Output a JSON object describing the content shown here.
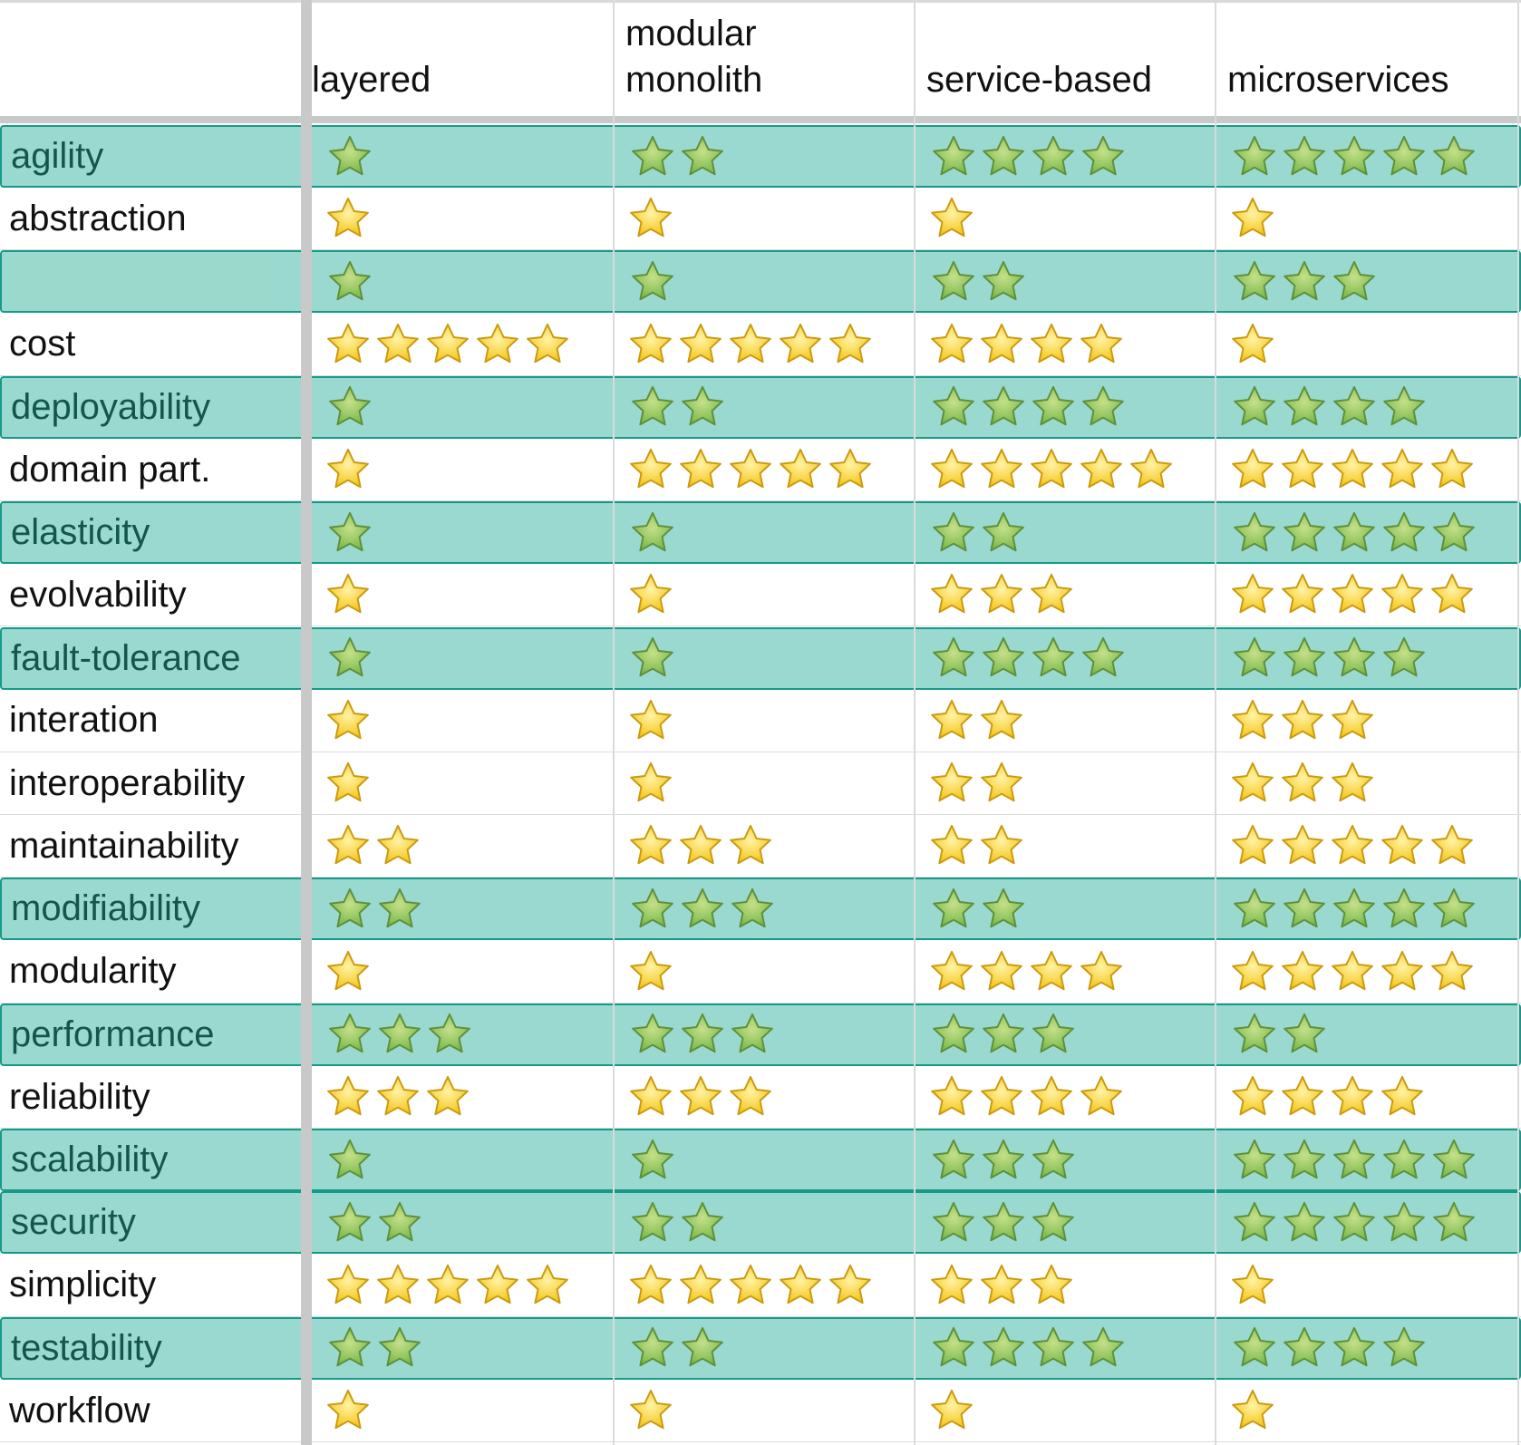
{
  "table": {
    "columns": [
      "layered",
      "modular\nmonolith",
      "service-based",
      "microservices"
    ],
    "rows": [
      {
        "label": "agility",
        "highlight": true,
        "stars": [
          1,
          2,
          4,
          5
        ]
      },
      {
        "label": "abstraction",
        "highlight": false,
        "stars": [
          1,
          1,
          1,
          1
        ]
      },
      {
        "label": "",
        "highlight": true,
        "redacted": true,
        "stars": [
          1,
          1,
          2,
          3
        ]
      },
      {
        "label": "cost",
        "highlight": false,
        "stars": [
          5,
          5,
          4,
          1
        ]
      },
      {
        "label": "deployability",
        "highlight": true,
        "stars": [
          1,
          2,
          4,
          4
        ]
      },
      {
        "label": "domain part.",
        "highlight": false,
        "stars": [
          1,
          5,
          5,
          5
        ]
      },
      {
        "label": "elasticity",
        "highlight": true,
        "stars": [
          1,
          1,
          2,
          5
        ]
      },
      {
        "label": "evolvability",
        "highlight": false,
        "stars": [
          1,
          1,
          3,
          5
        ]
      },
      {
        "label": "fault-tolerance",
        "highlight": true,
        "stars": [
          1,
          1,
          4,
          4
        ]
      },
      {
        "label": "interation",
        "highlight": false,
        "stars": [
          1,
          1,
          2,
          3
        ]
      },
      {
        "label": "interoperability",
        "highlight": false,
        "stars": [
          1,
          1,
          2,
          3
        ]
      },
      {
        "label": "maintainability",
        "highlight": false,
        "stars": [
          2,
          3,
          2,
          5
        ]
      },
      {
        "label": "modifiability",
        "highlight": true,
        "stars": [
          2,
          3,
          2,
          5
        ]
      },
      {
        "label": "modularity",
        "highlight": false,
        "stars": [
          1,
          1,
          4,
          5
        ]
      },
      {
        "label": "performance",
        "highlight": true,
        "stars": [
          3,
          3,
          3,
          2
        ]
      },
      {
        "label": "reliability",
        "highlight": false,
        "stars": [
          3,
          3,
          4,
          4
        ]
      },
      {
        "label": "scalability",
        "highlight": true,
        "stars": [
          1,
          1,
          3,
          5
        ]
      },
      {
        "label": "security",
        "highlight": true,
        "stars": [
          2,
          2,
          3,
          5
        ]
      },
      {
        "label": "simplicity",
        "highlight": false,
        "stars": [
          5,
          5,
          3,
          1
        ]
      },
      {
        "label": "testability",
        "highlight": true,
        "stars": [
          2,
          2,
          4,
          4
        ]
      },
      {
        "label": "workflow",
        "highlight": false,
        "stars": [
          1,
          1,
          1,
          1
        ]
      }
    ]
  },
  "icons": {
    "rating": "star-icon"
  },
  "colors": {
    "highlight_fill": "#9ad9cf",
    "highlight_border": "#159a8a",
    "highlight_text": "#14564e",
    "star_gold": "#f5c518",
    "star_green": "#79b84a"
  }
}
